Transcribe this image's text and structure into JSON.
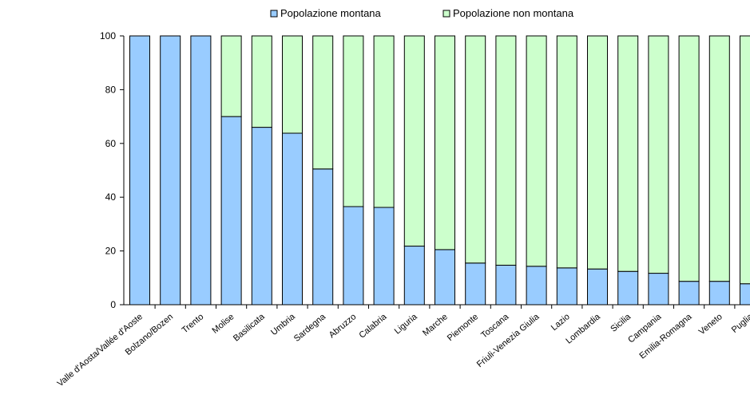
{
  "chart_data": {
    "type": "bar",
    "stacked": true,
    "categories": [
      "Valle d'Aosta/Vallée d'Aoste",
      "Bolzano/Bozen",
      "Trento",
      "Molise",
      "Basilicata",
      "Umbria",
      "Sardegna",
      "Abruzzo",
      "Calabria",
      "Liguria",
      "Marche",
      "Piemonte",
      "Toscana",
      "Friuli-Venezia Giulia",
      "Lazio",
      "Lombardia",
      "Sicilia",
      "Campania",
      "Emilia-Romagna",
      "Veneto",
      "Puglia"
    ],
    "series": [
      {
        "name": "Popolazione montana",
        "color": "#99ccff",
        "values": [
          100,
          100,
          100,
          70,
          66,
          63.8,
          50.5,
          36.5,
          36.2,
          21.8,
          20.5,
          15.5,
          14.7,
          14.3,
          13.7,
          13.3,
          12.4,
          11.7,
          8.7,
          8.7,
          7.8
        ]
      },
      {
        "name": "Popolazione non montana",
        "color": "#ccffcc",
        "values": [
          0,
          0,
          0,
          30,
          34,
          36.2,
          49.5,
          63.5,
          63.8,
          78.2,
          79.5,
          84.5,
          85.3,
          85.7,
          86.3,
          86.7,
          87.6,
          88.3,
          91.3,
          91.3,
          92.2
        ]
      }
    ],
    "ylim": [
      0,
      100
    ],
    "yticks": [
      "0",
      "20",
      "40",
      "60",
      "80",
      "100"
    ],
    "legend_position": "top",
    "grid": false
  }
}
